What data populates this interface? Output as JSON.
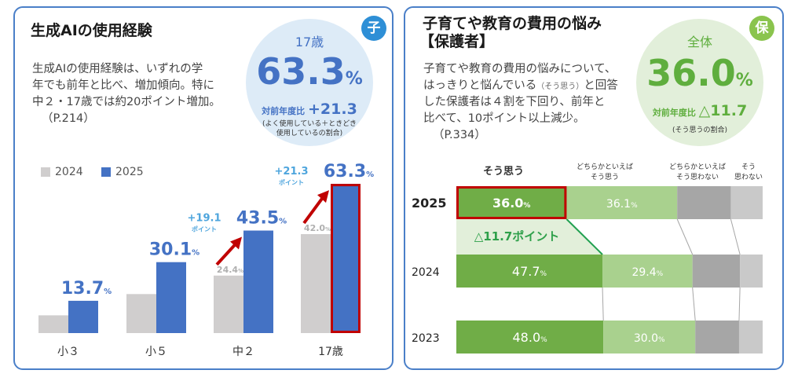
{
  "left": {
    "title": "生成AIの使用経験",
    "badge": "子",
    "desc": [
      "生成AIの使用経験は、いずれの学",
      "年でも前年と比べ、増加傾向。特に",
      "中２・17歳では約20ポイント増加。",
      "（P.214）"
    ],
    "bubble": {
      "label": "17歳",
      "value": "63.3",
      "unit": "%",
      "diff_label": "対前年度比",
      "diff_value": "+21.3",
      "note1": "(よく使用している＋ときどき",
      "note2": "使用しているの割合)"
    },
    "colors": {
      "accent": "#4472c4",
      "prev": "#d0cece",
      "highlight": "#c00000",
      "arrow": "#c00000",
      "diff_text": "#4ea5dd",
      "bubble": "#ddebf7",
      "badge": "#2e8fd6"
    }
  },
  "right": {
    "title_line1": "子育てや教育の費用の悩み",
    "title_line2": "【保護者】",
    "badge": "保",
    "desc": [
      "子育てや教育の費用の悩みについて、",
      "はっきりと悩んでいる",
      "と回答",
      "した保護者は４割を下回り、前年と",
      "比べて、10ポイント以上減少。",
      "（P.334）"
    ],
    "desc_small": "（そう思う）",
    "bubble": {
      "label": "全体",
      "value": "36.0",
      "unit": "%",
      "diff_label": "対前年度比",
      "diff_value": "△11.7",
      "note1": "(そう思うの割合)"
    },
    "colors": {
      "s1": "#70ad47",
      "s2": "#a9d18e",
      "s3": "#a6a6a6",
      "s4": "#c9c9c9",
      "highlight": "#c00000",
      "bubble": "#e2efda",
      "accent": "#5fae3e",
      "badge": "#8ac44d",
      "band": "#e2efda",
      "diff_text": "#2ea04a"
    }
  },
  "chart_data": [
    {
      "type": "bar",
      "title": "生成AIの使用経験",
      "categories": [
        "小３",
        "小５",
        "中２",
        "17歳"
      ],
      "series": [
        {
          "name": "2024",
          "values": [
            null,
            null,
            24.4,
            42.0
          ]
        },
        {
          "name": "2025",
          "values": [
            13.7,
            30.1,
            43.5,
            63.3
          ]
        }
      ],
      "unit": "%",
      "value_labels": [
        "13.7",
        "30.1",
        "43.5",
        "63.3"
      ],
      "prev_labels": [
        "",
        "",
        "24.4",
        "42.0"
      ],
      "diff_labels": [
        {
          "category": "中２",
          "value": "+19.1",
          "unit": "ポイント"
        },
        {
          "category": "17歳",
          "value": "+21.3",
          "unit": "ポイント"
        }
      ],
      "ylim": [
        0,
        70
      ]
    },
    {
      "type": "bar",
      "stacked": true,
      "orientation": "horizontal",
      "title": "子育てや教育の費用の悩み【保護者】",
      "categories": [
        "2025",
        "2024",
        "2023"
      ],
      "legend": [
        "そう思う",
        "どちらかといえば そう思う",
        "どちらかといえば そう思わない",
        "そう 思わない"
      ],
      "series": [
        {
          "name": "そう思う",
          "values": [
            36.0,
            47.7,
            48.0
          ]
        },
        {
          "name": "どちらかといえば そう思う",
          "values": [
            36.1,
            29.4,
            30.0
          ]
        },
        {
          "name": "どちらかといえば そう思わない",
          "values": [
            17.5,
            15.5,
            14.3
          ]
        },
        {
          "name": "そう 思わない",
          "values": [
            10.4,
            7.4,
            7.7
          ]
        }
      ],
      "value_labels": [
        [
          "36.0",
          "36.1"
        ],
        [
          "47.7",
          "29.4"
        ],
        [
          "48.0",
          "30.0"
        ]
      ],
      "unit": "%",
      "annotation": "△11.7ポイント"
    }
  ]
}
